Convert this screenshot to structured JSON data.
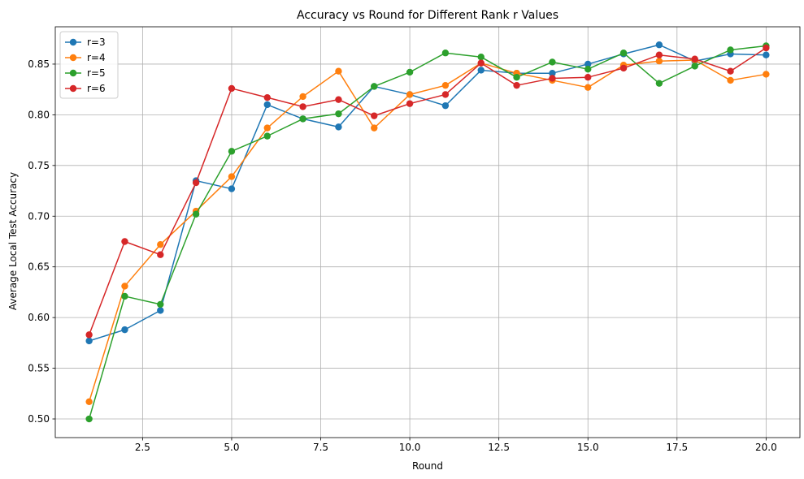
{
  "chart_data": {
    "type": "line",
    "title": "Accuracy vs Round for Different Rank r Values",
    "xlabel": "Round",
    "ylabel": "Average Local Test Accuracy",
    "xlim": [
      0.05,
      20.95
    ],
    "ylim": [
      0.4816,
      0.8868
    ],
    "xticks": [
      2.5,
      5.0,
      7.5,
      10.0,
      12.5,
      15.0,
      17.5,
      20.0
    ],
    "xtick_labels": [
      "2.5",
      "5.0",
      "7.5",
      "10.0",
      "12.5",
      "15.0",
      "17.5",
      "20.0"
    ],
    "yticks": [
      0.5,
      0.55,
      0.6,
      0.65,
      0.7,
      0.75,
      0.8,
      0.85
    ],
    "ytick_labels": [
      "0.50",
      "0.55",
      "0.60",
      "0.65",
      "0.70",
      "0.75",
      "0.80",
      "0.85"
    ],
    "grid": true,
    "legend_position": "top-left",
    "x": [
      1,
      2,
      3,
      4,
      5,
      6,
      7,
      8,
      9,
      10,
      11,
      12,
      13,
      14,
      15,
      16,
      17,
      18,
      19,
      20
    ],
    "series": [
      {
        "name": "r=3",
        "color": "#1f77b4",
        "values": [
          0.577,
          0.588,
          0.607,
          0.735,
          0.727,
          0.81,
          0.796,
          0.788,
          0.828,
          0.82,
          0.809,
          0.844,
          0.841,
          0.841,
          0.85,
          0.86,
          0.869,
          0.853,
          0.86,
          0.859
        ]
      },
      {
        "name": "r=4",
        "color": "#ff7f0e",
        "values": [
          0.517,
          0.631,
          0.672,
          0.705,
          0.739,
          0.787,
          0.818,
          0.843,
          0.787,
          0.82,
          0.829,
          0.851,
          0.841,
          0.834,
          0.827,
          0.849,
          0.853,
          0.854,
          0.834,
          0.84
        ]
      },
      {
        "name": "r=5",
        "color": "#2ca02c",
        "values": [
          0.5,
          0.621,
          0.613,
          0.702,
          0.764,
          0.779,
          0.796,
          0.801,
          0.828,
          0.842,
          0.861,
          0.857,
          0.837,
          0.852,
          0.845,
          0.861,
          0.831,
          0.848,
          0.864,
          0.868
        ]
      },
      {
        "name": "r=6",
        "color": "#d62728",
        "values": [
          0.583,
          0.675,
          0.662,
          0.733,
          0.826,
          0.817,
          0.808,
          0.815,
          0.799,
          0.811,
          0.82,
          0.851,
          0.829,
          0.836,
          0.837,
          0.846,
          0.859,
          0.855,
          0.843,
          0.866
        ]
      }
    ]
  }
}
